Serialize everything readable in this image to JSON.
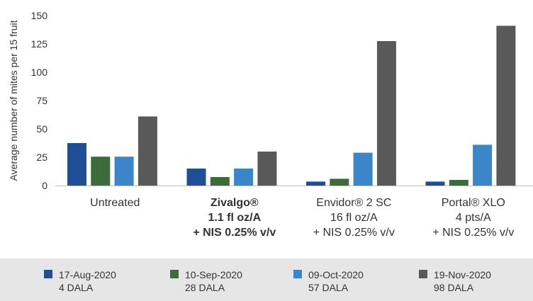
{
  "chart_data": {
    "type": "bar",
    "ylabel": "Average number of mites per 15 fruit",
    "ylim": [
      0,
      150
    ],
    "yticks": [
      0,
      25,
      50,
      75,
      100,
      125,
      150
    ],
    "grid": false,
    "legend_position": "bottom",
    "categories": [
      {
        "lines": [
          "Untreated"
        ],
        "bold": false
      },
      {
        "lines": [
          "Zivalgo®",
          "1.1 fl oz/A",
          "+ NIS 0.25% v/v"
        ],
        "bold": true
      },
      {
        "lines": [
          "Envidor® 2 SC",
          "16 fl oz/A",
          "+ NIS 0.25% v/v"
        ],
        "bold": false
      },
      {
        "lines": [
          "Portal® XLO",
          "4 pts/A",
          "+ NIS 0.25% v/v"
        ],
        "bold": false
      }
    ],
    "series": [
      {
        "name": "17-Aug-2020",
        "sub": "4 DALA",
        "color": "#1f4e96",
        "values": [
          37.5,
          15,
          3.5,
          3.5
        ]
      },
      {
        "name": "10-Sep-2020",
        "sub": "28 DALA",
        "color": "#3d6b3a",
        "values": [
          25.5,
          7.5,
          6,
          5
        ]
      },
      {
        "name": "09-Oct-2020",
        "sub": "57 DALA",
        "color": "#3a86c9",
        "values": [
          25.5,
          15,
          29,
          36
        ]
      },
      {
        "name": "19-Nov-2020",
        "sub": "98 DALA",
        "color": "#595959",
        "values": [
          61,
          30,
          127.5,
          141
        ]
      }
    ]
  }
}
